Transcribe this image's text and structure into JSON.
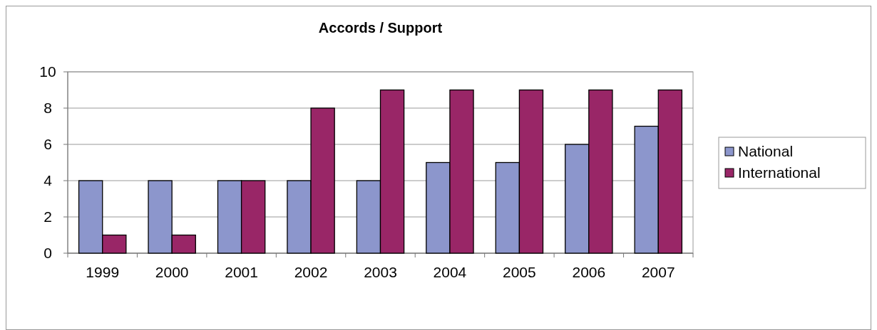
{
  "chart_data": {
    "type": "bar",
    "title": "Accords / Support",
    "categories": [
      "1999",
      "2000",
      "2001",
      "2002",
      "2003",
      "2004",
      "2005",
      "2006",
      "2007"
    ],
    "series": [
      {
        "name": "National",
        "color": "#8c96cc",
        "values": [
          4,
          4,
          4,
          4,
          4,
          5,
          5,
          6,
          7
        ]
      },
      {
        "name": "International",
        "color": "#992667",
        "values": [
          1,
          1,
          4,
          8,
          9,
          9,
          9,
          9,
          9
        ]
      }
    ],
    "ylim": [
      0,
      10
    ],
    "yticks": [
      0,
      2,
      4,
      6,
      8,
      10
    ],
    "grid": "y",
    "legend": "right"
  }
}
